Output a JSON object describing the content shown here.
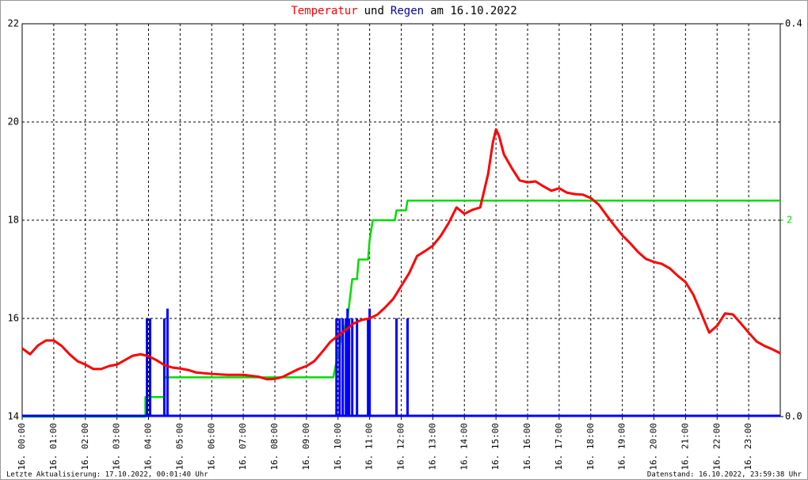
{
  "chart_data": {
    "type": "line",
    "title_parts": [
      {
        "text": "Temperatur",
        "color": "#ff0000"
      },
      {
        "text": "und",
        "color": "#000000"
      },
      {
        "text": "Regen",
        "color": "#0000a0"
      },
      {
        "text": "am 16.10.2022",
        "color": "#000000"
      }
    ],
    "footer_left": "Letzte Aktualisierung: 17.10.2022, 00:01:40 Uhr",
    "footer_right": "Datenstand: 16.10.2022, 23:59:38 Uhr",
    "xlim": [
      0,
      24
    ],
    "xticks": [
      {
        "value": 0,
        "label": "16. 00:00"
      },
      {
        "value": 1,
        "label": "16. 01:00"
      },
      {
        "value": 2,
        "label": "16. 02:00"
      },
      {
        "value": 3,
        "label": "16. 03:00"
      },
      {
        "value": 4,
        "label": "16. 04:00"
      },
      {
        "value": 5,
        "label": "16. 05:00"
      },
      {
        "value": 6,
        "label": "16. 06:00"
      },
      {
        "value": 7,
        "label": "16. 07:00"
      },
      {
        "value": 8,
        "label": "16. 08:00"
      },
      {
        "value": 9,
        "label": "16. 09:00"
      },
      {
        "value": 10,
        "label": "16. 10:00"
      },
      {
        "value": 11,
        "label": "16. 11:00"
      },
      {
        "value": 12,
        "label": "16. 12:00"
      },
      {
        "value": 13,
        "label": "16. 13:00"
      },
      {
        "value": 14,
        "label": "16. 14:00"
      },
      {
        "value": 15,
        "label": "16. 15:00"
      },
      {
        "value": 16,
        "label": "16. 16:00"
      },
      {
        "value": 17,
        "label": "16. 17:00"
      },
      {
        "value": 18,
        "label": "16. 18:00"
      },
      {
        "value": 19,
        "label": "16. 19:00"
      },
      {
        "value": 20,
        "label": "16. 20:00"
      },
      {
        "value": 21,
        "label": "16. 21:00"
      },
      {
        "value": 22,
        "label": "16. 22:00"
      },
      {
        "value": 23,
        "label": "16. 23:00"
      }
    ],
    "ylim": [
      14,
      22
    ],
    "yticks": [
      14,
      16,
      18,
      20,
      22
    ],
    "y2lim": [
      0,
      0.4
    ],
    "y2ticks": [
      {
        "value": 0,
        "label": "0.0"
      },
      {
        "value": 0.4,
        "label": "0.4"
      }
    ],
    "y3lim": [
      0,
      4
    ],
    "y3ticks": [
      2
    ],
    "y3color": "#00dd00",
    "grid": true,
    "series": [
      {
        "type": "line",
        "color": "#ff0000",
        "axis": "y",
        "x": [
          0,
          0.25,
          0.5,
          0.75,
          1,
          1.25,
          1.5,
          1.75,
          2,
          2.25,
          2.5,
          2.75,
          3,
          3.25,
          3.5,
          3.75,
          4,
          4.25,
          4.5,
          4.75,
          5,
          5.25,
          5.5,
          6,
          6.5,
          7,
          7.5,
          7.75,
          8,
          8.25,
          8.5,
          8.75,
          9,
          9.25,
          9.5,
          9.75,
          10,
          10.25,
          10.5,
          10.75,
          11,
          11.25,
          11.5,
          11.75,
          12,
          12.25,
          12.5,
          12.75,
          13,
          13.25,
          13.5,
          13.75,
          14,
          14.25,
          14.5,
          14.75,
          14.9,
          15,
          15.1,
          15.25,
          15.5,
          15.75,
          16,
          16.25,
          16.5,
          16.75,
          17,
          17.25,
          17.5,
          17.75,
          18,
          18.25,
          18.5,
          18.75,
          19,
          19.25,
          19.5,
          19.75,
          20,
          20.25,
          20.5,
          20.75,
          21,
          21.25,
          21.5,
          21.75,
          22,
          22.25,
          22.5,
          22.75,
          23,
          23.25,
          23.5,
          23.75,
          24
        ],
        "values": [
          15.39,
          15.27,
          15.45,
          15.55,
          15.55,
          15.44,
          15.27,
          15.13,
          15.06,
          14.97,
          14.97,
          15.03,
          15.06,
          15.15,
          15.24,
          15.27,
          15.23,
          15.15,
          15.05,
          15.0,
          14.98,
          14.95,
          14.9,
          14.87,
          14.85,
          14.85,
          14.81,
          14.76,
          14.77,
          14.81,
          14.89,
          14.97,
          15.03,
          15.13,
          15.32,
          15.52,
          15.65,
          15.77,
          15.9,
          15.97,
          16.0,
          16.08,
          16.23,
          16.4,
          16.66,
          16.92,
          17.27,
          17.37,
          17.48,
          17.68,
          17.94,
          18.26,
          18.13,
          18.21,
          18.26,
          18.94,
          19.58,
          19.85,
          19.71,
          19.34,
          19.06,
          18.81,
          18.77,
          18.79,
          18.69,
          18.6,
          18.65,
          18.56,
          18.53,
          18.52,
          18.45,
          18.32,
          18.1,
          17.89,
          17.69,
          17.53,
          17.35,
          17.21,
          17.15,
          17.11,
          17.02,
          16.87,
          16.74,
          16.48,
          16.1,
          15.71,
          15.85,
          16.1,
          16.08,
          15.9,
          15.71,
          15.53,
          15.44,
          15.37,
          15.29
        ]
      },
      {
        "type": "bar",
        "color": "#0000ff",
        "axis": "y2",
        "x": [
          3.95,
          4.05,
          4.5,
          4.6,
          9.95,
          10.05,
          10.15,
          10.25,
          10.3,
          10.35,
          10.45,
          10.6,
          10.95,
          11.0,
          11.85,
          12.2
        ],
        "values": [
          0.1,
          0.1,
          0.1,
          0.11,
          0.1,
          0.1,
          0.1,
          0.1,
          0.11,
          0.1,
          0.1,
          0.1,
          0.1,
          0.11,
          0.1,
          0.1
        ]
      },
      {
        "type": "line",
        "color": "#00dd00",
        "axis": "y3",
        "x": [
          0,
          3.9,
          3.9,
          4.5,
          4.5,
          9.85,
          10.1,
          10.3,
          10.45,
          10.6,
          10.65,
          10.95,
          11.0,
          11.1,
          11.8,
          11.85,
          12.15,
          12.2,
          24
        ],
        "values": [
          0,
          0,
          0.2,
          0.2,
          0.4,
          0.4,
          0.8,
          1.0,
          1.4,
          1.4,
          1.6,
          1.6,
          1.8,
          2.0,
          2.0,
          2.1,
          2.1,
          2.2,
          2.2
        ]
      }
    ]
  }
}
